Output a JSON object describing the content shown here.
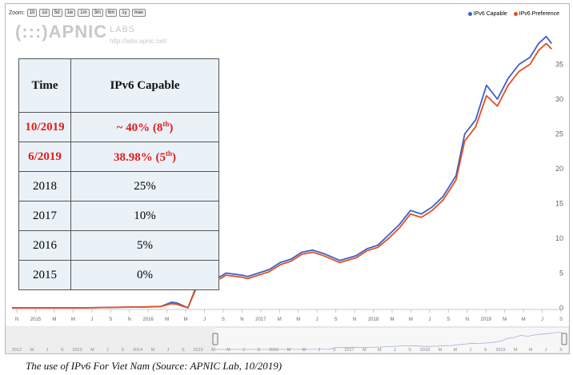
{
  "zoom": {
    "label": "Zoom:",
    "buttons": [
      "1lt",
      "1d",
      "5d",
      "1w",
      "1m",
      "3m",
      "6m",
      "1y",
      "max"
    ]
  },
  "watermark": {
    "logo": "(:::)APNIC",
    "labs": "LABS",
    "url": "http://labs.apnic.net/"
  },
  "table": {
    "headers": [
      "Time",
      "IPv6 Capable"
    ],
    "rows": [
      {
        "time": "10/2019",
        "value": "~ 40% (8",
        "sup": "th",
        "close": ")",
        "highlight": true
      },
      {
        "time": "6/2019",
        "value": "38.98% (5",
        "sup": "th",
        "close": ")",
        "highlight": true
      },
      {
        "time": "2018",
        "value": "25%",
        "sup": "",
        "close": "",
        "highlight": false
      },
      {
        "time": "2017",
        "value": "10%",
        "sup": "",
        "close": "",
        "highlight": false
      },
      {
        "time": "2016",
        "value": "5%",
        "sup": "",
        "close": "",
        "highlight": false
      },
      {
        "time": "2015",
        "value": "0%",
        "sup": "",
        "close": "",
        "highlight": false
      }
    ]
  },
  "caption": "The use of IPv6 For Viet Nam  (Source: APNIC Lab, 10/2019)",
  "chart_data": {
    "type": "line",
    "title": "",
    "xlabel": "",
    "ylabel": "",
    "ylim": [
      0,
      40
    ],
    "yticks": [
      0,
      5,
      10,
      15,
      20,
      25,
      30,
      35
    ],
    "grid": false,
    "legend_position": "top-right",
    "x_axis_ticks": [
      "N",
      "2015",
      "M",
      "M",
      "J",
      "S",
      "N",
      "2016",
      "M",
      "M",
      "J",
      "S",
      "N",
      "2017",
      "M",
      "M",
      "J",
      "S",
      "N",
      "2018",
      "M",
      "M",
      "J",
      "S",
      "N",
      "2019",
      "M",
      "M",
      "J",
      "S"
    ],
    "navigator_ticks": [
      "2012",
      "M",
      "J",
      "S",
      "2013",
      "M",
      "J",
      "S",
      "2014",
      "M",
      "J",
      "S",
      "2015",
      "M",
      "M",
      "J",
      "S",
      "2016",
      "M",
      "M",
      "J",
      "S",
      "2017",
      "M",
      "M",
      "J",
      "S",
      "2018",
      "M",
      "M",
      "J",
      "S",
      "2019",
      "M",
      "M",
      "J",
      "S"
    ],
    "x": [
      2014.83,
      2015.0,
      2015.5,
      2015.9,
      2016.0,
      2016.2,
      2016.3,
      2016.35,
      2016.45,
      2016.55,
      2016.62,
      2016.7,
      2016.75,
      2016.8,
      2016.95,
      2017.0,
      2017.2,
      2017.3,
      2017.4,
      2017.5,
      2017.6,
      2017.7,
      2017.85,
      2018.0,
      2018.1,
      2018.2,
      2018.3,
      2018.4,
      2018.5,
      2018.6,
      2018.7,
      2018.8,
      2018.88,
      2018.92,
      2019.0,
      2019.1,
      2019.2,
      2019.3,
      2019.4,
      2019.5,
      2019.6,
      2019.68,
      2019.75,
      2019.8
    ],
    "series": [
      {
        "name": "IPv6 Capable",
        "color": "#3a5fcd",
        "values": [
          0,
          0,
          0,
          0.1,
          0.1,
          0.2,
          0.8,
          0.7,
          0,
          4,
          4.2,
          4.6,
          4.5,
          5,
          4.7,
          4.5,
          5.5,
          6.5,
          7,
          8,
          8.3,
          7.8,
          6.8,
          7.5,
          8.5,
          9,
          10.5,
          12,
          14,
          13.5,
          14.5,
          16,
          18,
          19,
          25,
          27,
          32,
          30,
          33,
          35,
          36,
          38,
          39,
          38
        ]
      },
      {
        "name": "IPv6 Preference",
        "color": "#e2501f",
        "values": [
          0,
          0,
          0,
          0.1,
          0.1,
          0.2,
          0.6,
          0.5,
          0,
          3.7,
          3.9,
          4.3,
          4.2,
          4.7,
          4.4,
          4.2,
          5.2,
          6.2,
          6.7,
          7.7,
          8.0,
          7.5,
          6.5,
          7.2,
          8.2,
          8.7,
          10.0,
          11.5,
          13.5,
          13.0,
          14.0,
          15.5,
          17.4,
          18.4,
          24.0,
          26.0,
          30.5,
          29.0,
          32.0,
          34.0,
          35.0,
          37.0,
          38.0,
          37.2
        ]
      }
    ]
  }
}
